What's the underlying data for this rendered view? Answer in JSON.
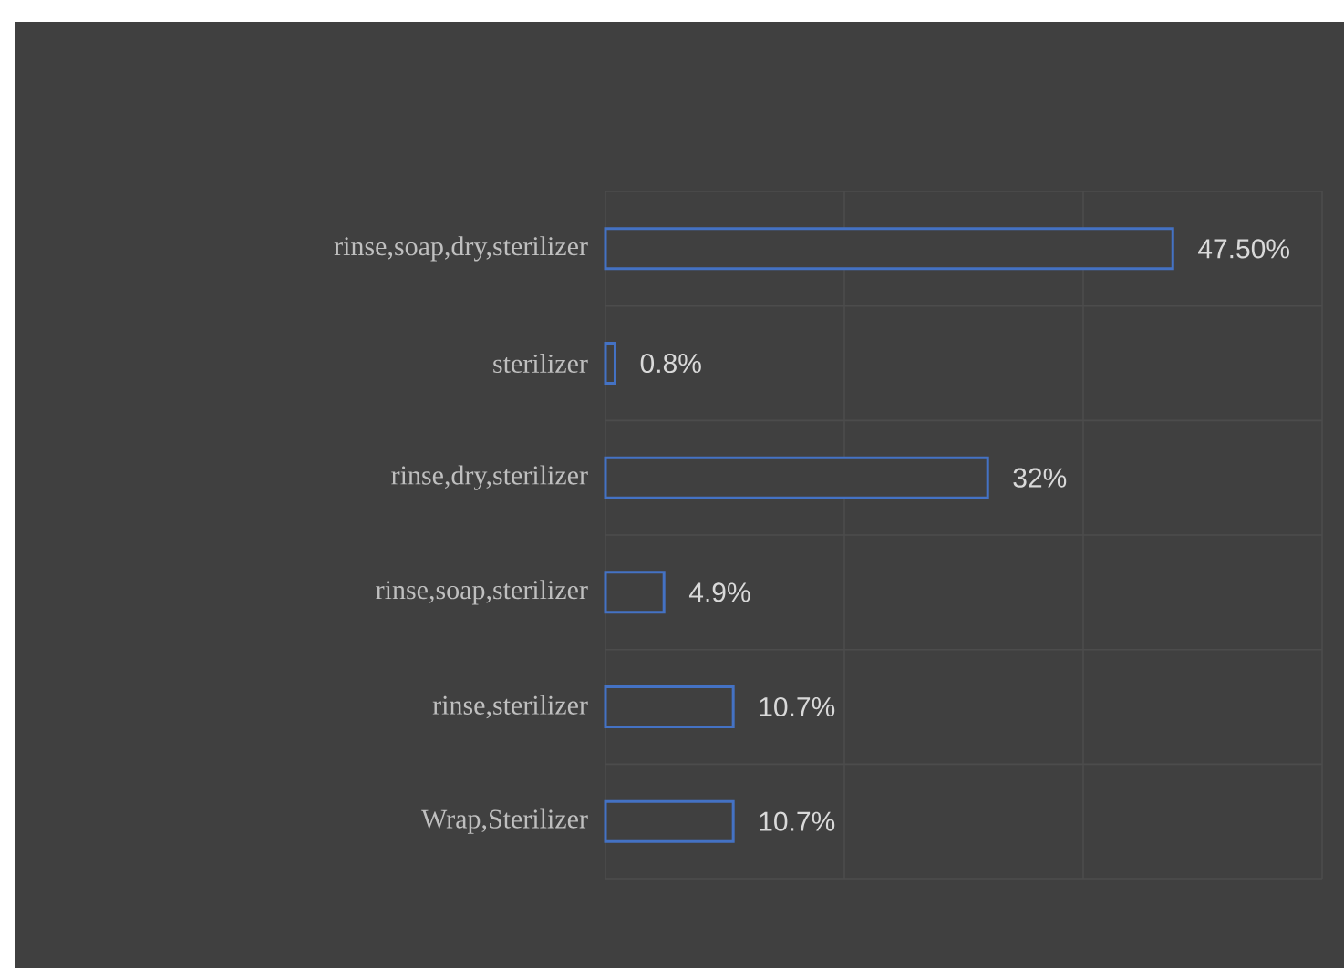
{
  "chart_data": {
    "type": "bar",
    "orientation": "horizontal",
    "categories": [
      "rinse,soap,dry,sterilizer",
      "sterilizer",
      "rinse,dry,sterilizer",
      "rinse,soap,sterilizer",
      "rinse,sterilizer",
      "Wrap,Sterilizer"
    ],
    "values": [
      47.5,
      0.8,
      32,
      4.9,
      10.7,
      10.7
    ],
    "value_labels": [
      "47.50%",
      "0.8%",
      "32%",
      "4.9%",
      "10.7%",
      "10.7%"
    ],
    "color": "#4472c4",
    "xlim": [
      0,
      60
    ],
    "xticks": [
      {
        "value": 0,
        "label": null
      },
      {
        "value": 20,
        "label": null
      },
      {
        "value": 40,
        "label": null
      },
      {
        "value": 60,
        "label": null
      }
    ],
    "grid": true,
    "tick_labels": "y"
  }
}
